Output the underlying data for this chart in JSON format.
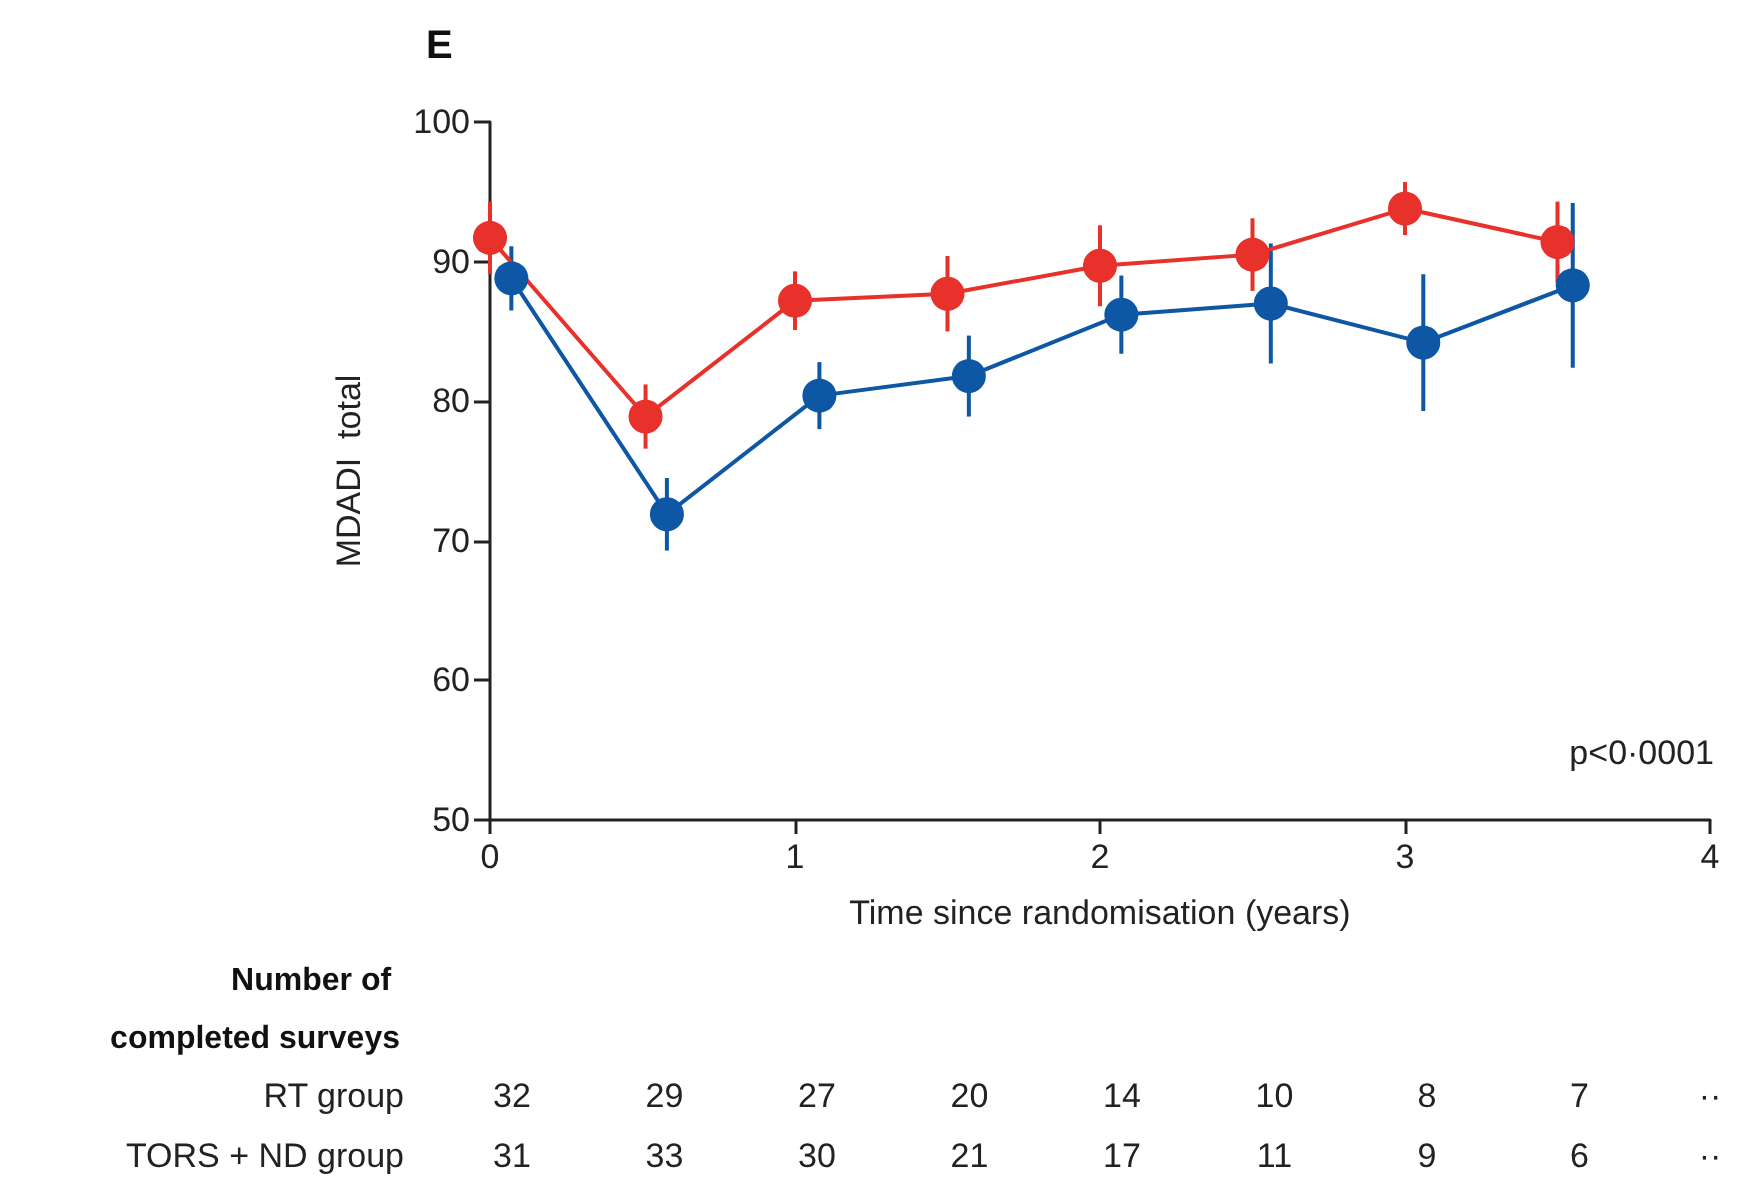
{
  "chart_data": {
    "type": "line",
    "title": "E",
    "xlabel": "Time since randomisation (years)",
    "ylabel": "MDADI  total",
    "xlim": [
      0,
      4
    ],
    "xticks": [
      0,
      1,
      2,
      3,
      4
    ],
    "ylim": [
      50,
      100
    ],
    "yticks": [
      50,
      60,
      70,
      80,
      90,
      100
    ],
    "grid": false,
    "marker": "circle",
    "line_style": "solid",
    "series": [
      {
        "color": "#e8312a",
        "x": [
          0,
          0.51,
          1.0,
          1.5,
          2.0,
          2.5,
          3.0,
          3.5
        ],
        "values": [
          91.7,
          78.9,
          87.2,
          87.7,
          89.7,
          90.5,
          93.8,
          91.4
        ],
        "errors": [
          2.6,
          2.3,
          2.1,
          2.7,
          2.9,
          2.6,
          1.9,
          2.9
        ]
      },
      {
        "color": "#0d57a4",
        "x": [
          0.07,
          0.58,
          1.08,
          1.57,
          2.07,
          2.56,
          3.06,
          3.55
        ],
        "values": [
          88.8,
          71.9,
          80.4,
          81.8,
          86.2,
          87.0,
          84.2,
          88.3
        ],
        "errors": [
          2.3,
          2.6,
          2.4,
          2.9,
          2.8,
          4.3,
          4.9,
          5.9
        ]
      }
    ],
    "annotations": [
      "p<0·0001",
      "Number of completed surveys",
      "RT group",
      "TORS + ND group",
      "32",
      "29",
      "27",
      "20",
      "14",
      "10",
      "8",
      "7",
      "··",
      "31",
      "33",
      "30",
      "21",
      "17",
      "11",
      "9",
      "6",
      "··"
    ]
  }
}
